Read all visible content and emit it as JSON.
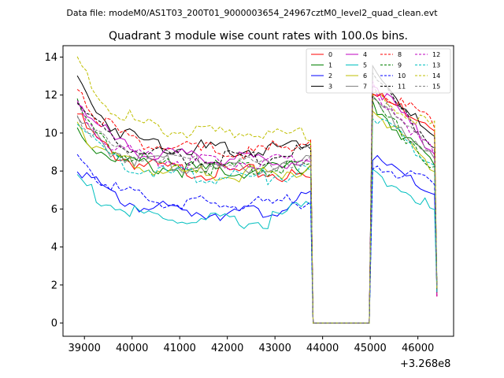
{
  "chart_data": {
    "type": "line",
    "suptitle": "Data file: modeM0/AS1T03_200T01_9000003654_24967cztM0_level2_quad_clean.evt",
    "title": "Quadrant 3 module wise count rates with 100.0s bins.",
    "xlabel": "",
    "ylabel": "",
    "x_offset_label": "+3.268e8",
    "xlim": [
      38550,
      46750
    ],
    "ylim": [
      -0.7,
      14.6
    ],
    "x_ticks": [
      39000,
      40000,
      41000,
      42000,
      43000,
      44000,
      45000,
      46000
    ],
    "x_tick_labels": [
      "39000",
      "40000",
      "41000",
      "42000",
      "43000",
      "44000",
      "45000",
      "46000"
    ],
    "y_ticks": [
      0,
      2,
      4,
      6,
      8,
      10,
      12,
      14
    ],
    "y_tick_labels": [
      "0",
      "2",
      "4",
      "6",
      "8",
      "10",
      "12",
      "14"
    ],
    "legend_location": "upper right",
    "gaps": [
      {
        "x_start": 43800,
        "x_end": 44980,
        "value": 0
      }
    ],
    "x_segments": [
      {
        "start": 38850,
        "end": 43750,
        "step": 100
      },
      {
        "start": 45050,
        "end": 46350,
        "step": 100
      }
    ],
    "series": [
      {
        "name": "0",
        "color": "#ff0000",
        "dash": "solid",
        "start": 11.0,
        "plateau": 7.9,
        "tail": 7.6,
        "burst": 12.0,
        "burst_end": 10.5
      },
      {
        "name": "1",
        "color": "#008000",
        "dash": "solid",
        "start": 10.2,
        "plateau": 8.0,
        "tail": 8.3,
        "burst": 11.5,
        "burst_end": 8.3
      },
      {
        "name": "2",
        "color": "#0000ff",
        "dash": "solid",
        "start": 8.4,
        "plateau": 5.8,
        "tail": 6.6,
        "burst": 8.6,
        "burst_end": 6.8
      },
      {
        "name": "3",
        "color": "#000000",
        "dash": "solid",
        "start": 12.9,
        "plateau": 9.1,
        "tail": 9.6,
        "burst": 13.4,
        "burst_end": 9.5
      },
      {
        "name": "4",
        "color": "#bf00bf",
        "dash": "solid",
        "start": 11.9,
        "plateau": 8.6,
        "tail": 8.4,
        "burst": 12.7,
        "burst_end": 9.0
      },
      {
        "name": "5",
        "color": "#00bfbf",
        "dash": "solid",
        "start": 7.8,
        "plateau": 5.3,
        "tail": 6.3,
        "burst": 8.0,
        "burst_end": 5.9
      },
      {
        "name": "6",
        "color": "#bfbf00",
        "dash": "solid",
        "start": 10.6,
        "plateau": 7.8,
        "tail": 8.1,
        "burst": 11.3,
        "burst_end": 8.0
      },
      {
        "name": "7",
        "color": "#808080",
        "dash": "solid",
        "start": 10.8,
        "plateau": 8.2,
        "tail": 8.6,
        "burst": 11.8,
        "burst_end": 8.6
      },
      {
        "name": "8",
        "color": "#ff0000",
        "dash": "dashed",
        "start": 12.6,
        "plateau": 9.0,
        "tail": 9.7,
        "burst": 12.3,
        "burst_end": 10.6
      },
      {
        "name": "9",
        "color": "#008000",
        "dash": "dashed",
        "start": 11.4,
        "plateau": 8.1,
        "tail": 8.1,
        "burst": 11.6,
        "burst_end": 8.3
      },
      {
        "name": "10",
        "color": "#0000ff",
        "dash": "dashed",
        "start": 9.0,
        "plateau": 6.2,
        "tail": 6.5,
        "burst": 8.4,
        "burst_end": 7.2
      },
      {
        "name": "11",
        "color": "#000000",
        "dash": "dashed",
        "start": 11.7,
        "plateau": 8.6,
        "tail": 9.1,
        "burst": 12.8,
        "burst_end": 9.4
      },
      {
        "name": "12",
        "color": "#bf00bf",
        "dash": "dashed",
        "start": 11.5,
        "plateau": 8.4,
        "tail": 8.7,
        "burst": 12.4,
        "burst_end": 8.8
      },
      {
        "name": "13",
        "color": "#00bfbf",
        "dash": "dashed",
        "start": 10.8,
        "plateau": 7.7,
        "tail": 8.0,
        "burst": 11.0,
        "burst_end": 8.3
      },
      {
        "name": "14",
        "color": "#bfbf00",
        "dash": "dashed",
        "start": 13.8,
        "plateau": 10.0,
        "tail": 9.9,
        "burst": 12.0,
        "burst_end": 10.3
      },
      {
        "name": "15",
        "color": "#808080",
        "dash": "dashed",
        "start": 11.1,
        "plateau": 8.4,
        "tail": 8.5,
        "burst": 12.0,
        "burst_end": 8.9
      }
    ]
  }
}
